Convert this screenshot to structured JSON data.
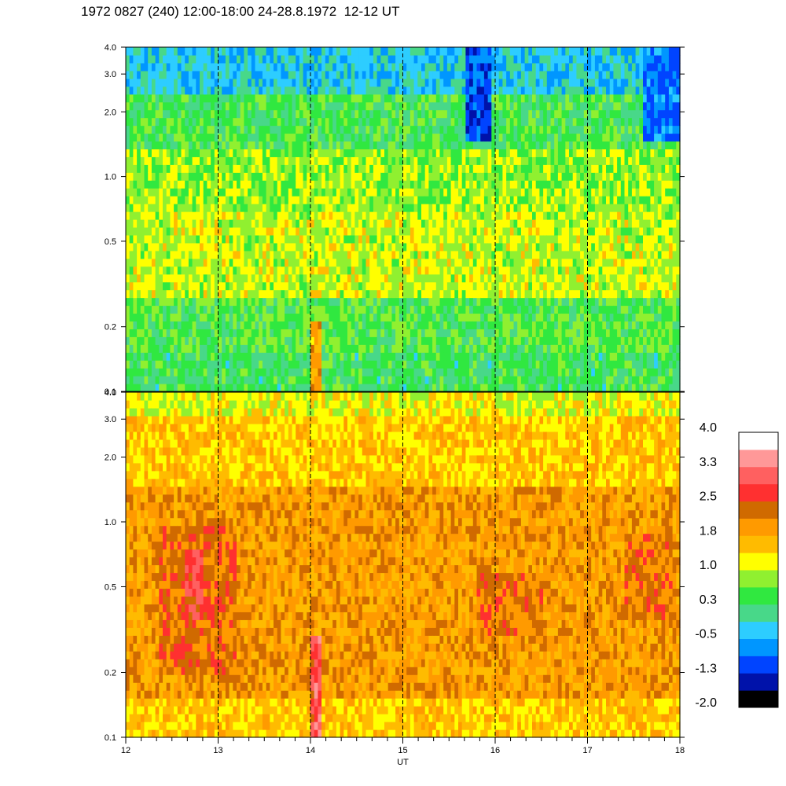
{
  "title": "1972 0827 (240) 12:00-18:00 24-28.8.1972  12-12 UT",
  "chart_data": [
    {
      "type": "heatmap",
      "panel": "upper",
      "x_range": [
        12,
        18
      ],
      "y_range": [
        0.1,
        4.0
      ],
      "y_scale": "log",
      "y_ticks": [
        "0.1",
        "0.2",
        "0.5",
        "1.0",
        "2.0",
        "3.0",
        "4.0"
      ],
      "x_hour_markers": [
        13,
        14,
        15,
        16,
        17
      ],
      "bands": [
        {
          "y_from": 0.1,
          "y_to": 0.15,
          "level": 0.3
        },
        {
          "y_from": 0.15,
          "y_to": 0.28,
          "level": 0.5
        },
        {
          "y_from": 0.28,
          "y_to": 0.7,
          "level": 1.0
        },
        {
          "y_from": 0.7,
          "y_to": 1.3,
          "level": 0.8
        },
        {
          "y_from": 1.3,
          "y_to": 2.5,
          "level": 0.4
        },
        {
          "y_from": 2.5,
          "y_to": 4.0,
          "level": -0.3
        }
      ],
      "features": [
        {
          "x_from": 14.02,
          "x_to": 14.13,
          "y_from": 0.1,
          "y_to": 0.22,
          "level": 1.8
        },
        {
          "x_from": 15.7,
          "x_to": 15.95,
          "y_from": 1.5,
          "y_to": 4.0,
          "level": -1.0
        },
        {
          "x_from": 17.6,
          "x_to": 18.0,
          "y_from": 1.5,
          "y_to": 4.0,
          "level": -0.8
        }
      ]
    },
    {
      "type": "heatmap",
      "panel": "lower",
      "x_range": [
        12,
        18
      ],
      "y_range": [
        0.1,
        4.0
      ],
      "y_scale": "log",
      "y_ticks": [
        "0.1",
        "0.2",
        "0.5",
        "1.0",
        "2.0",
        "3.0",
        "4.0"
      ],
      "x_ticks": [
        "12",
        "13",
        "14",
        "15",
        "16",
        "17",
        "18"
      ],
      "xlabel": "UT",
      "x_hour_markers": [
        13,
        14,
        15,
        16,
        17
      ],
      "bands": [
        {
          "y_from": 0.1,
          "y_to": 0.15,
          "level": 1.5
        },
        {
          "y_from": 0.15,
          "y_to": 1.5,
          "level": 1.9
        },
        {
          "y_from": 1.5,
          "y_to": 3.2,
          "level": 1.5
        },
        {
          "y_from": 3.2,
          "y_to": 4.0,
          "level": 1.1
        }
      ],
      "features": [
        {
          "x_from": 12.35,
          "x_to": 13.2,
          "y_from": 0.2,
          "y_to": 1.0,
          "level": 2.3
        },
        {
          "x_from": 12.65,
          "x_to": 12.85,
          "y_from": 0.35,
          "y_to": 0.75,
          "level": 2.8
        },
        {
          "x_from": 14.02,
          "x_to": 14.13,
          "y_from": 0.1,
          "y_to": 0.3,
          "level": 2.9
        },
        {
          "x_from": 15.8,
          "x_to": 16.5,
          "y_from": 0.3,
          "y_to": 0.6,
          "level": 2.2
        },
        {
          "x_from": 17.4,
          "x_to": 17.9,
          "y_from": 0.35,
          "y_to": 0.9,
          "level": 2.2
        }
      ]
    }
  ],
  "colorbar": {
    "labels": [
      "4.0",
      "3.3",
      "2.5",
      "1.8",
      "1.0",
      "0.3",
      "-0.5",
      "-1.3",
      "-2.0"
    ],
    "min": -2.0,
    "max": 4.0,
    "colors": [
      "#000000",
      "#0012aa",
      "#0044ff",
      "#0096ff",
      "#2dcdff",
      "#48d889",
      "#30e840",
      "#90f030",
      "#ffff00",
      "#ffbb00",
      "#ff9a00",
      "#d06a00",
      "#ff3030",
      "#ff6060",
      "#ff9898",
      "#ffffff"
    ]
  }
}
